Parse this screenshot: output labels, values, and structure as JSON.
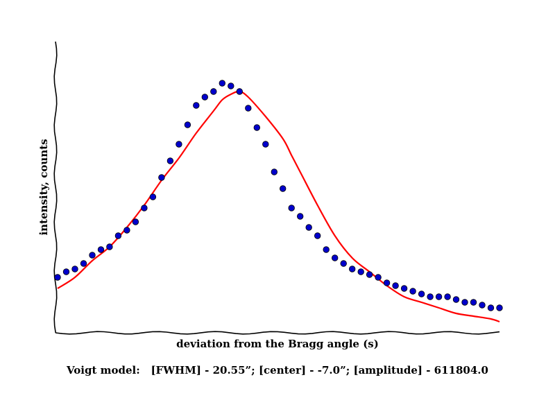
{
  "chart_data": {
    "type": "scatter",
    "title": "",
    "xlabel": "deviation from the Bragg angle (s)",
    "ylabel": "intensity, counts",
    "caption": "Voigt model:   [FWHM] - 20.55”; [center] - -7.0”; [amplitude] - 611804.0",
    "xlim": [
      0,
      51
    ],
    "ylim": [
      0,
      100
    ],
    "grid": false,
    "ticks": false,
    "series": [
      {
        "kind": "points",
        "color": "#0000cc",
        "x": [
          0,
          1,
          2,
          3,
          4,
          5,
          6,
          7,
          8,
          9,
          10,
          11,
          12,
          13,
          14,
          15,
          16,
          17,
          18,
          19,
          20,
          21,
          22,
          23,
          24,
          25,
          26,
          27,
          28,
          29,
          30,
          31,
          32,
          33,
          34,
          35,
          36,
          37,
          38,
          39,
          40,
          41,
          42,
          43,
          44,
          45,
          46,
          47,
          48,
          49,
          50,
          51
        ],
        "y": [
          20,
          22,
          23,
          25,
          28,
          30,
          31,
          35,
          37,
          40,
          45,
          49,
          56,
          62,
          68,
          75,
          82,
          85,
          87,
          90,
          89,
          87,
          81,
          74,
          68,
          58,
          52,
          45,
          42,
          38,
          35,
          30,
          27,
          25,
          23,
          22,
          21,
          20,
          18,
          17,
          16,
          15,
          14,
          13,
          13,
          13,
          12,
          11,
          11,
          10,
          9,
          9
        ]
      },
      {
        "kind": "line",
        "color": "#ff0000",
        "x": [
          0,
          2,
          4,
          6,
          8,
          10,
          12,
          14,
          16,
          18,
          19,
          20,
          21,
          22,
          24,
          26,
          27,
          28,
          30,
          32,
          34,
          36,
          38,
          40,
          42,
          44,
          46,
          48,
          50,
          51
        ],
        "y": [
          16,
          20,
          26,
          31,
          38,
          46,
          55,
          63,
          72,
          80,
          84,
          86,
          87,
          85,
          78,
          70,
          64,
          58,
          46,
          35,
          27,
          22,
          17,
          13,
          11,
          9,
          7,
          6,
          5,
          4
        ]
      }
    ]
  }
}
